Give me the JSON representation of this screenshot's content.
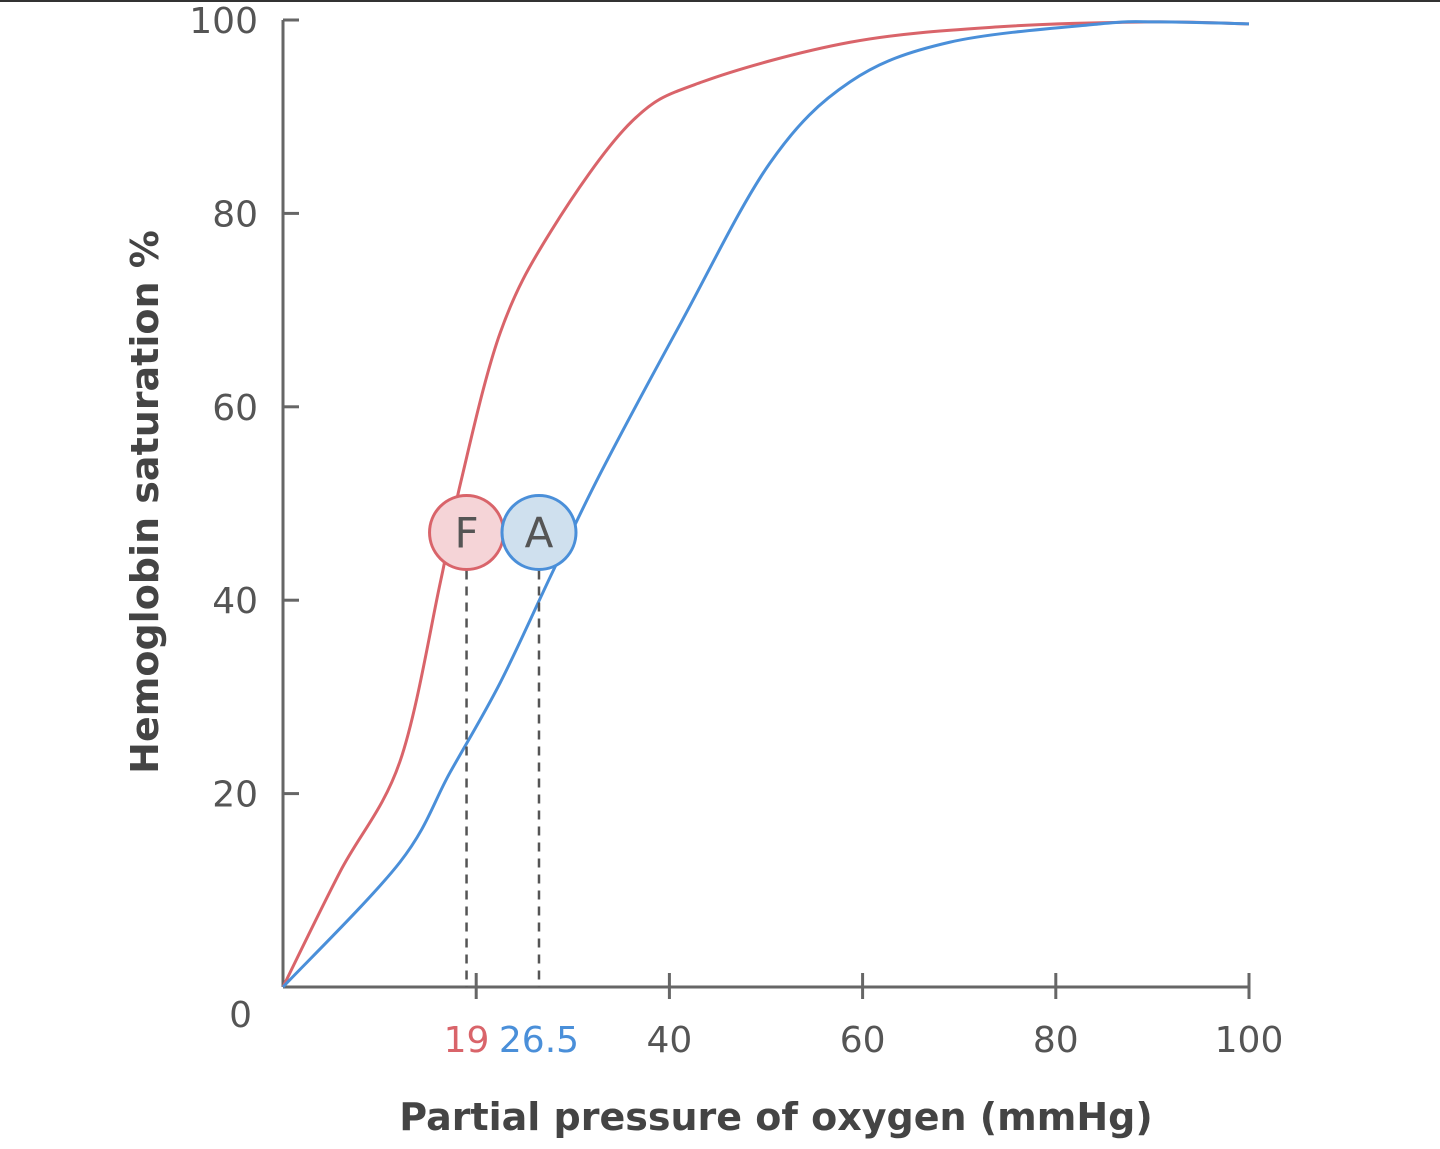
{
  "chart_data": {
    "type": "line",
    "xlabel": "Partial pressure of oxygen (mmHg)",
    "ylabel": "Hemoglobin saturation %",
    "xlim": [
      0,
      100
    ],
    "ylim": [
      0,
      100
    ],
    "grid": false,
    "y_ticks": [
      "0",
      "20",
      "40",
      "60",
      "80",
      "100"
    ],
    "x_ticks": [
      20,
      40,
      60,
      80,
      100
    ],
    "x_tick_labels": [
      "40",
      "60",
      "80",
      "100"
    ],
    "series": [
      {
        "name": "F",
        "color": "#d9646a",
        "marker_fill": "#f5d4d7",
        "p50": 19,
        "p50_label": "19",
        "x": [
          0,
          5.9,
          12.1,
          16.3,
          18.4,
          22.5,
          27.7,
          36,
          43.4,
          58.7,
          74.2,
          89.8,
          100
        ],
        "y": [
          0,
          11.9,
          23.3,
          41.9,
          52.2,
          67.7,
          78.1,
          89.4,
          93.6,
          97.7,
          99.3,
          99.8,
          99.6
        ]
      },
      {
        "name": "A",
        "color": "#4a8fd9",
        "marker_fill": "#cfe0ee",
        "p50": 26.5,
        "p50_label": "26.5",
        "x": [
          0,
          12.1,
          17.3,
          22.5,
          27.9,
          32.9,
          41.2,
          50.4,
          58.7,
          69,
          84.6,
          90.8,
          100
        ],
        "y": [
          0,
          12.9,
          22.2,
          31.5,
          42.9,
          53.2,
          68.7,
          85.2,
          93.6,
          97.7,
          99.6,
          99.8,
          99.6
        ]
      }
    ],
    "marker_y": 47
  }
}
